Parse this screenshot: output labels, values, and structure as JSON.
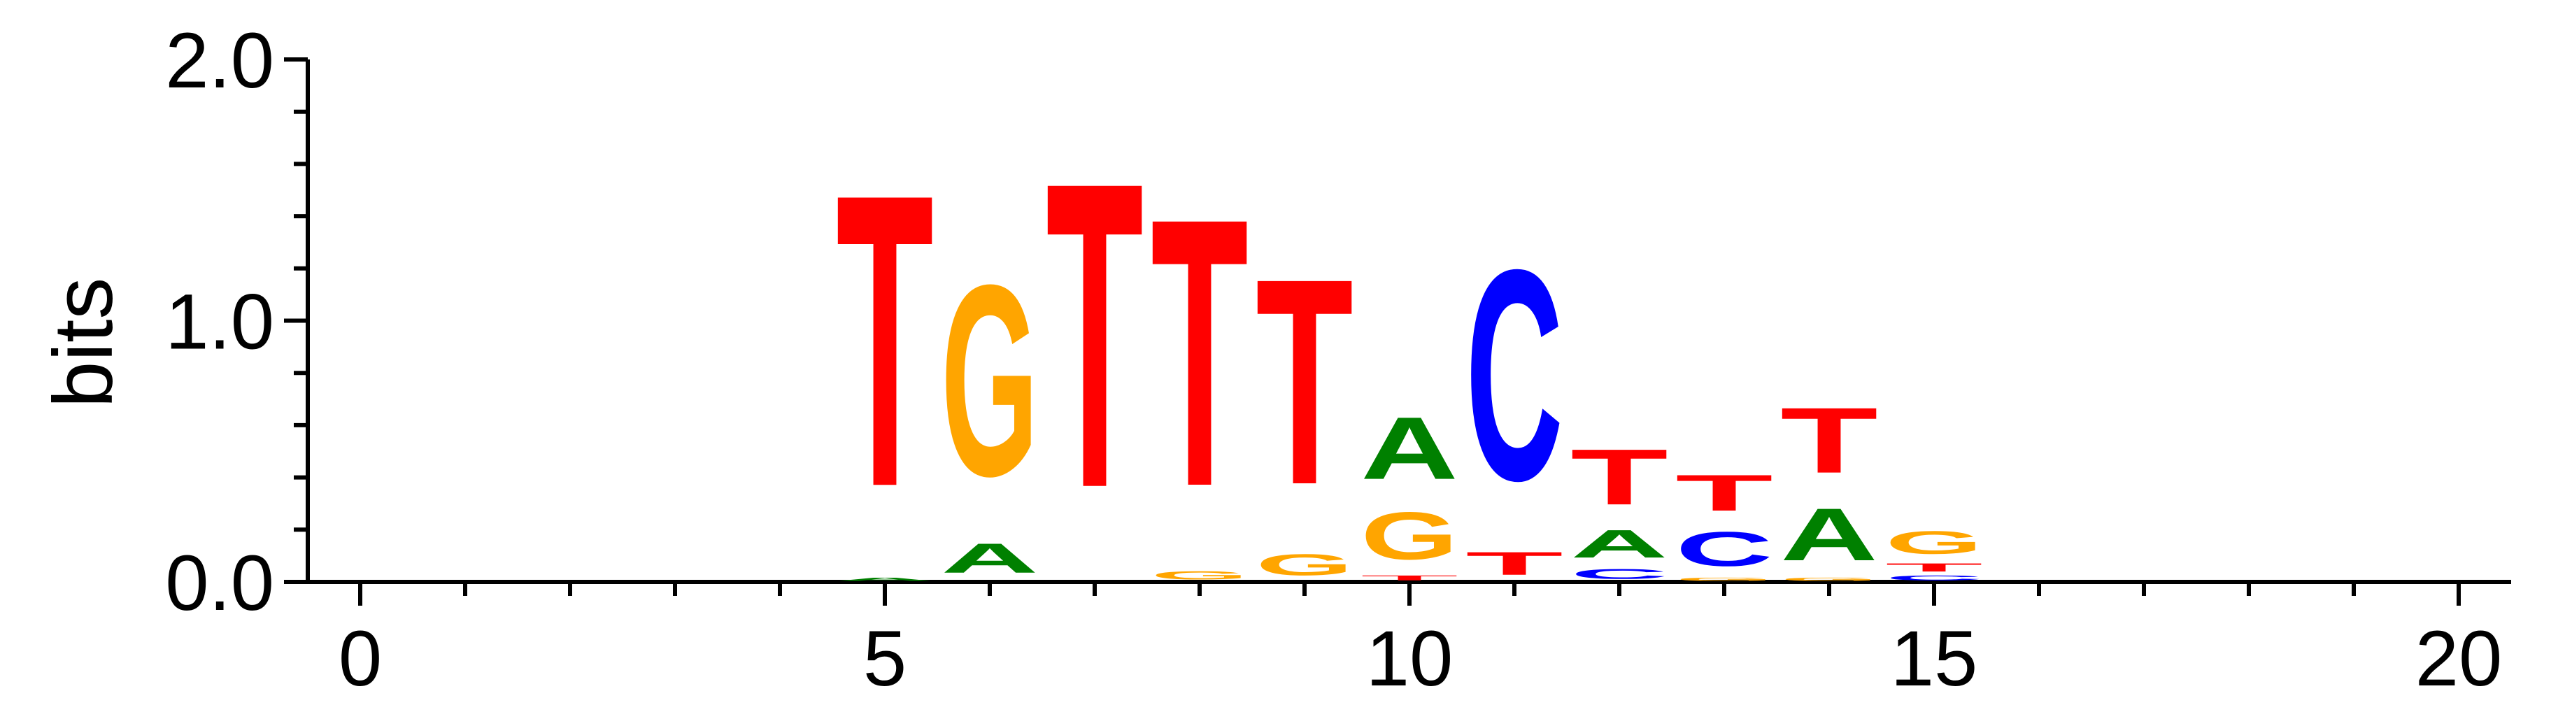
{
  "chart_data": {
    "type": "sequence-logo",
    "title": "",
    "xlabel": "",
    "ylabel": "bits",
    "xlim": [
      -0.5,
      20.5
    ],
    "ylim": [
      0,
      2.0
    ],
    "x_ticks": [
      0,
      5,
      10,
      15,
      20
    ],
    "x_tick_labels": [
      "0",
      "5",
      "10",
      "15",
      "20"
    ],
    "x_minor_step": 1,
    "y_ticks": [
      0,
      1.0,
      2.0
    ],
    "y_tick_labels": [
      "0.0",
      "1.0",
      "2.0"
    ],
    "y_minor_step": 0.2,
    "colors": {
      "A": "#008000",
      "C": "#0000ff",
      "G": "#ffa500",
      "T": "#ff0000"
    },
    "positions": [
      {
        "x": 5,
        "letters": [
          {
            "base": "A",
            "bits": 0.02
          },
          {
            "base": "T",
            "bits": 1.79
          }
        ]
      },
      {
        "x": 6,
        "letters": [
          {
            "base": "A",
            "bits": 0.18
          },
          {
            "base": "G",
            "bits": 1.17
          }
        ]
      },
      {
        "x": 7,
        "letters": [
          {
            "base": "T",
            "bits": 1.87
          }
        ]
      },
      {
        "x": 8,
        "letters": [
          {
            "base": "G",
            "bits": 0.05
          },
          {
            "base": "T",
            "bits": 1.64
          }
        ]
      },
      {
        "x": 9,
        "letters": [
          {
            "base": "G",
            "bits": 0.13
          },
          {
            "base": "T",
            "bits": 1.26
          }
        ]
      },
      {
        "x": 10,
        "letters": [
          {
            "base": "T",
            "bits": 0.03
          },
          {
            "base": "G",
            "bits": 0.29
          },
          {
            "base": "A",
            "bits": 0.38
          }
        ]
      },
      {
        "x": 11,
        "letters": [
          {
            "base": "T",
            "bits": 0.14
          },
          {
            "base": "C",
            "bits": 1.29
          }
        ]
      },
      {
        "x": 12,
        "letters": [
          {
            "base": "C",
            "bits": 0.06
          },
          {
            "base": "A",
            "bits": 0.17
          },
          {
            "base": "T",
            "bits": 0.34
          }
        ]
      },
      {
        "x": 13,
        "letters": [
          {
            "base": "G",
            "bits": 0.02
          },
          {
            "base": "C",
            "bits": 0.21
          },
          {
            "base": "T",
            "bits": 0.22
          }
        ]
      },
      {
        "x": 14,
        "letters": [
          {
            "base": "G",
            "bits": 0.02
          },
          {
            "base": "A",
            "bits": 0.32
          },
          {
            "base": "T",
            "bits": 0.4
          }
        ]
      },
      {
        "x": 15,
        "letters": [
          {
            "base": "C",
            "bits": 0.03
          },
          {
            "base": "T",
            "bits": 0.05
          },
          {
            "base": "G",
            "bits": 0.14
          }
        ]
      }
    ]
  }
}
